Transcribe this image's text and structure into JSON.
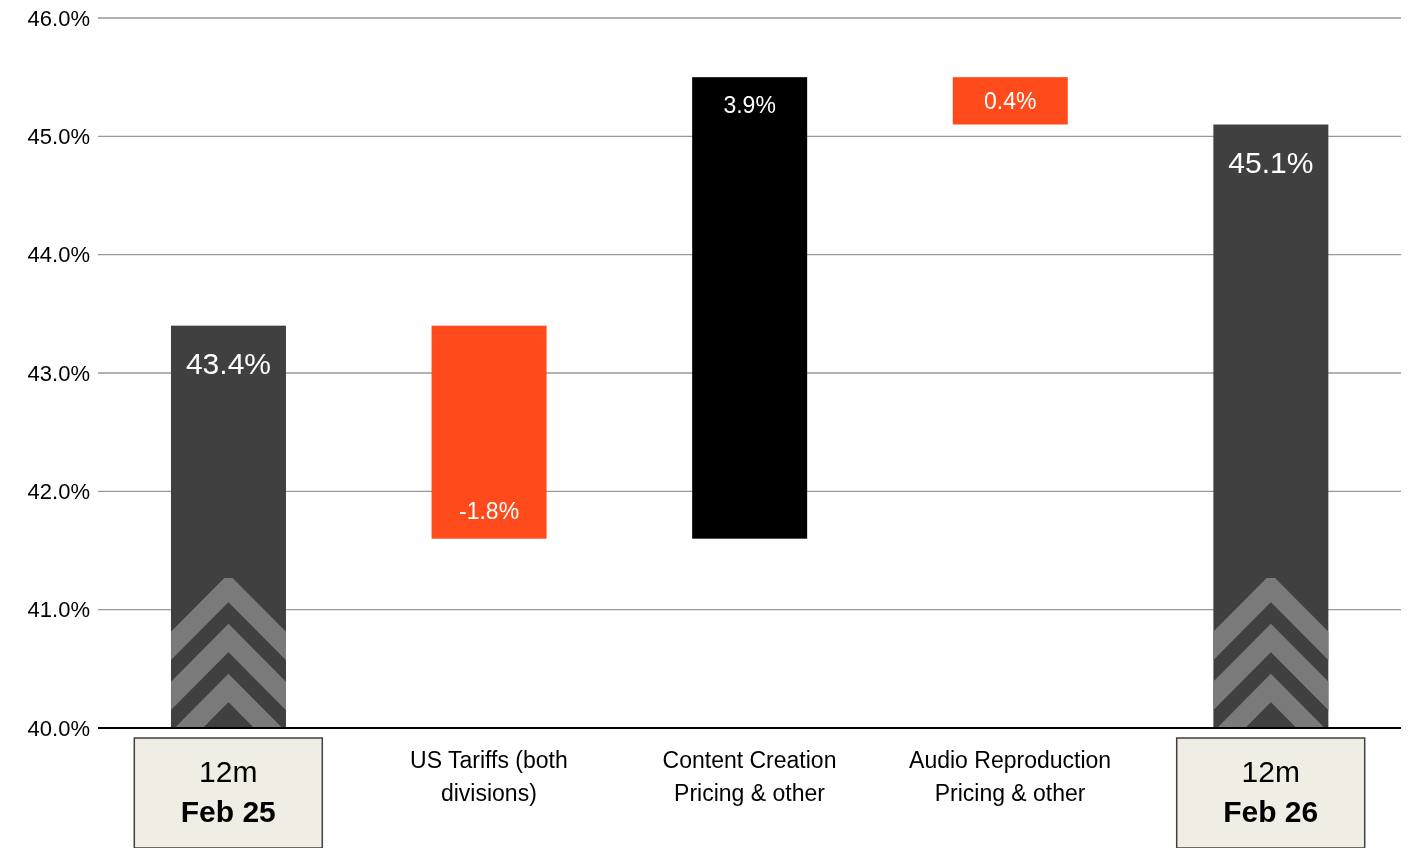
{
  "chart_data": {
    "type": "bar",
    "categories": [
      "12m\nFeb 25",
      "US Tariffs (both divisions)",
      "Content Creation Pricing & other",
      "Audio Reproduction Pricing & other",
      "12m\nFeb 26"
    ],
    "base": [
      40,
      43.4,
      41.6,
      45.5,
      40
    ],
    "values": [
      3.4,
      -1.8,
      3.9,
      -0.4,
      5.1
    ],
    "colors": [
      "#404040",
      "#ff4a1c",
      "#000000",
      "#ff4a1c",
      "#404040"
    ],
    "value_labels": [
      "43.4%",
      "-1.8%",
      "3.9%",
      "0.4%",
      "45.1%"
    ],
    "ylim": [
      40,
      46
    ],
    "yticks": [
      {
        "value": 40,
        "label": "40.0%"
      },
      {
        "value": 41,
        "label": "41.0%"
      },
      {
        "value": 42,
        "label": "42.0%"
      },
      {
        "value": 43,
        "label": "43.0%"
      },
      {
        "value": 44,
        "label": "44.0%"
      },
      {
        "value": 45,
        "label": "45.0%"
      },
      {
        "value": 46,
        "label": "46.0%"
      }
    ],
    "grid": "y"
  }
}
